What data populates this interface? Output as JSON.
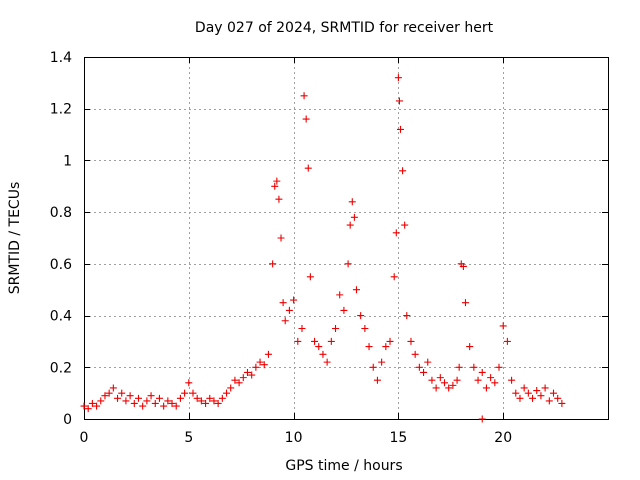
{
  "chart_data": {
    "type": "scatter",
    "title": "Day 027 of 2024, SRMTID for receiver hert",
    "xlabel": "GPS time / hours",
    "ylabel": "SRMTID / TECUs",
    "xlim": [
      0,
      25
    ],
    "ylim": [
      0,
      1.4
    ],
    "xticks": [
      0,
      5,
      10,
      15,
      20
    ],
    "xtick_labels": [
      "0",
      "5",
      "10",
      "15",
      "20"
    ],
    "yticks": [
      0,
      0.2,
      0.4,
      0.6,
      0.8,
      1.0,
      1.2,
      1.4
    ],
    "ytick_labels": [
      "0",
      "0.2",
      "0.4",
      "0.6",
      "0.8",
      "1",
      "1.2",
      "1.4"
    ],
    "grid": true,
    "marker": "+",
    "color": "#ee0000",
    "series": [
      {
        "name": "SRMTID",
        "x": [
          0.0,
          0.2,
          0.4,
          0.6,
          0.8,
          1.0,
          1.2,
          1.4,
          1.6,
          1.8,
          2.0,
          2.2,
          2.4,
          2.6,
          2.8,
          3.0,
          3.2,
          3.4,
          3.6,
          3.8,
          4.0,
          4.2,
          4.4,
          4.6,
          4.8,
          5.0,
          5.2,
          5.4,
          5.6,
          5.8,
          6.0,
          6.2,
          6.4,
          6.6,
          6.8,
          7.0,
          7.2,
          7.4,
          7.6,
          7.8,
          8.0,
          8.2,
          8.4,
          8.6,
          8.8,
          9.0,
          9.1,
          9.2,
          9.3,
          9.4,
          9.5,
          9.6,
          9.8,
          10.0,
          10.2,
          10.4,
          10.5,
          10.6,
          10.7,
          10.8,
          11.0,
          11.2,
          11.4,
          11.6,
          11.8,
          12.0,
          12.2,
          12.4,
          12.6,
          12.7,
          12.8,
          12.9,
          13.0,
          13.2,
          13.4,
          13.6,
          13.8,
          14.0,
          14.2,
          14.4,
          14.6,
          14.8,
          14.9,
          15.0,
          15.05,
          15.1,
          15.2,
          15.3,
          15.4,
          15.6,
          15.8,
          16.0,
          16.2,
          16.4,
          16.6,
          16.8,
          17.0,
          17.2,
          17.4,
          17.6,
          17.8,
          17.9,
          18.0,
          18.1,
          18.2,
          18.4,
          18.6,
          18.8,
          19.0,
          19.2,
          19.4,
          19.6,
          19.8,
          20.0,
          20.2,
          20.4,
          20.6,
          20.8,
          21.0,
          21.2,
          21.4,
          21.6,
          21.8,
          22.0,
          22.2,
          22.4,
          22.6,
          22.8,
          19.0
        ],
        "y": [
          0.05,
          0.04,
          0.06,
          0.05,
          0.07,
          0.09,
          0.1,
          0.12,
          0.08,
          0.1,
          0.07,
          0.09,
          0.06,
          0.08,
          0.05,
          0.07,
          0.09,
          0.06,
          0.08,
          0.05,
          0.07,
          0.06,
          0.05,
          0.08,
          0.1,
          0.14,
          0.1,
          0.08,
          0.07,
          0.06,
          0.08,
          0.07,
          0.06,
          0.08,
          0.1,
          0.12,
          0.15,
          0.14,
          0.16,
          0.18,
          0.17,
          0.2,
          0.22,
          0.21,
          0.25,
          0.6,
          0.9,
          0.92,
          0.85,
          0.7,
          0.45,
          0.38,
          0.42,
          0.46,
          0.3,
          0.35,
          1.25,
          1.16,
          0.97,
          0.55,
          0.3,
          0.28,
          0.25,
          0.22,
          0.3,
          0.35,
          0.48,
          0.42,
          0.6,
          0.75,
          0.84,
          0.78,
          0.5,
          0.4,
          0.35,
          0.28,
          0.2,
          0.15,
          0.22,
          0.28,
          0.3,
          0.55,
          0.72,
          1.32,
          1.23,
          1.12,
          0.96,
          0.75,
          0.4,
          0.3,
          0.25,
          0.2,
          0.18,
          0.22,
          0.15,
          0.12,
          0.16,
          0.14,
          0.12,
          0.13,
          0.15,
          0.2,
          0.6,
          0.59,
          0.45,
          0.28,
          0.2,
          0.15,
          0.18,
          0.12,
          0.16,
          0.14,
          0.2,
          0.36,
          0.3,
          0.15,
          0.1,
          0.08,
          0.12,
          0.1,
          0.08,
          0.11,
          0.09,
          0.12,
          0.07,
          0.1,
          0.08,
          0.06,
          0.0
        ]
      }
    ]
  }
}
